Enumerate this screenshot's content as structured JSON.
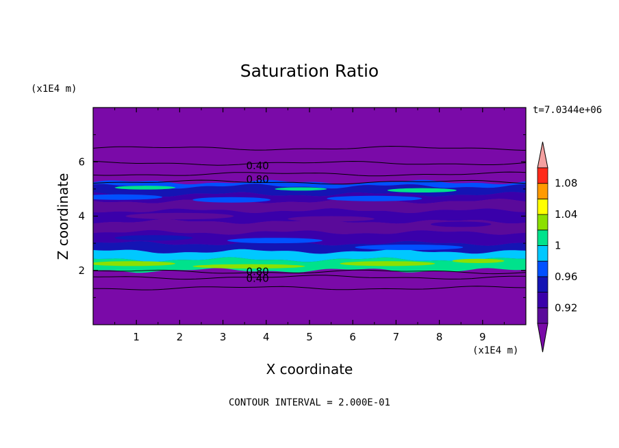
{
  "chart_data": {
    "type": "heatmap",
    "title": "Saturation Ratio",
    "xlabel": "X coordinate",
    "ylabel": "Z coordinate",
    "x_unit": "(x1E4 m)",
    "y_unit": "(x1E4 m)",
    "time_label": "t=7.0344e+06",
    "footer": "CONTOUR INTERVAL = 2.000E-01",
    "xlim": [
      0,
      10
    ],
    "ylim": [
      0,
      8
    ],
    "x_ticks": [
      "1",
      "2",
      "3",
      "4",
      "5",
      "6",
      "7",
      "8",
      "9"
    ],
    "y_ticks": [
      "2",
      "4",
      "6"
    ],
    "colorbar": {
      "labels": [
        "0.92",
        "0.96",
        "1",
        "1.04",
        "1.08"
      ],
      "levels": [
        0.9,
        0.92,
        0.94,
        0.96,
        0.98,
        1.0,
        1.02,
        1.04,
        1.06,
        1.08,
        1.1
      ],
      "colors": [
        "#5a0a9a",
        "#3a00aa",
        "#1414b4",
        "#0050ff",
        "#00c8ff",
        "#00e28c",
        "#8ce000",
        "#ffff00",
        "#ff9a00",
        "#ff2a1a"
      ],
      "under_color": "#7a0aa8",
      "over_color": "#f4a0a0"
    },
    "background_color": "#7a0aa8",
    "contour_labels": [
      {
        "text": "0.40",
        "x": 3.8,
        "z": 5.85
      },
      {
        "text": "0.80",
        "x": 3.8,
        "z": 5.35
      },
      {
        "text": "0.80",
        "x": 3.8,
        "z": 1.95
      },
      {
        "text": "0.40",
        "x": 3.8,
        "z": 1.7
      }
    ],
    "contour_lines_z": [
      6.5,
      5.95,
      5.55,
      5.25,
      1.95,
      1.75,
      1.35
    ],
    "bands": [
      {
        "z0": 5.25,
        "z1": 5.1,
        "value": 0.97
      },
      {
        "z0": 5.1,
        "z1": 4.8,
        "value": 0.955
      },
      {
        "z0": 4.8,
        "z1": 4.55,
        "value": 0.935
      },
      {
        "z0": 4.55,
        "z1": 4.2,
        "value": 0.915
      },
      {
        "z0": 4.2,
        "z1": 3.8,
        "value": 0.925
      },
      {
        "z0": 3.8,
        "z1": 3.4,
        "value": 0.905
      },
      {
        "z0": 3.4,
        "z1": 3.0,
        "value": 0.93
      },
      {
        "z0": 3.0,
        "z1": 2.7,
        "value": 0.95
      },
      {
        "z0": 2.7,
        "z1": 2.4,
        "value": 0.985
      },
      {
        "z0": 2.4,
        "z1": 2.0,
        "value": 1.01
      }
    ]
  }
}
